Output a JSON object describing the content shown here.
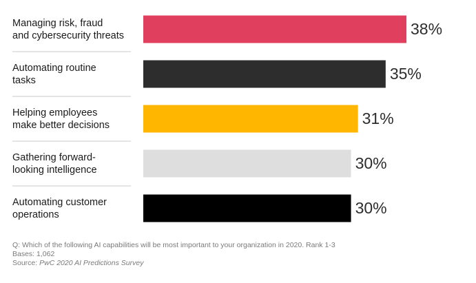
{
  "chart_data": {
    "type": "bar",
    "orientation": "horizontal",
    "categories": [
      [
        "Managing risk, fraud",
        "and cybersecurity threats"
      ],
      [
        "Automating routine",
        "tasks"
      ],
      [
        "Helping employees",
        "make better decisions"
      ],
      [
        "Gathering forward-",
        "looking intelligence"
      ],
      [
        "Automating customer",
        "operations"
      ]
    ],
    "values": [
      38,
      35,
      31,
      30,
      30
    ],
    "value_labels": [
      "38%",
      "35%",
      "31%",
      "30%",
      "30%"
    ],
    "bar_colors": [
      "#e0405e",
      "#2d2d2d",
      "#ffb600",
      "#dedede",
      "#000000"
    ],
    "xlim": [
      0,
      38
    ],
    "grid": false
  },
  "footnote": {
    "question": "Q: Which of the following AI capabilities will be most important to your organization in 2020. Rank 1-3",
    "bases": "Bases: 1,062",
    "source_prefix": "Source: ",
    "source_name": "PwC 2020 AI Predictions Survey"
  },
  "colors": {
    "divider": "#c8c8c8",
    "value_text": "#2d2d2d",
    "footnote_text": "#7a7a7a"
  }
}
